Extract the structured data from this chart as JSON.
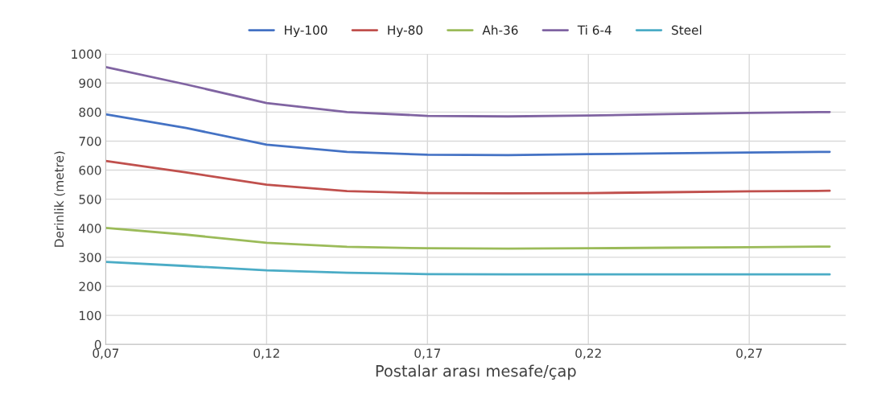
{
  "chart_data": {
    "type": "line",
    "xlabel": "Postalar arası mesafe/çap",
    "ylabel": "Derinlik (metre)",
    "x": [
      0.07,
      0.095,
      0.12,
      0.145,
      0.17,
      0.195,
      0.22,
      0.245,
      0.27,
      0.295
    ],
    "series": [
      {
        "name": "Hy-100",
        "color": "#4472c4",
        "values": [
          792,
          745,
          688,
          663,
          653,
          652,
          655,
          658,
          661,
          663
        ]
      },
      {
        "name": "Hy-80",
        "color": "#c0504d",
        "values": [
          632,
          592,
          550,
          528,
          521,
          520,
          521,
          524,
          527,
          529
        ]
      },
      {
        "name": "Ah-36",
        "color": "#9bbb59",
        "values": [
          401,
          378,
          350,
          336,
          331,
          330,
          331,
          333,
          335,
          337
        ]
      },
      {
        "name": "Ti 6-4",
        "color": "#8064a2",
        "values": [
          955,
          895,
          831,
          800,
          787,
          785,
          788,
          793,
          797,
          800
        ]
      },
      {
        "name": "Steel",
        "color": "#4bacc6",
        "values": [
          284,
          270,
          255,
          247,
          242,
          241,
          241,
          241,
          241,
          241
        ]
      }
    ],
    "xlim": [
      0.07,
      0.3
    ],
    "xticks": [
      {
        "value": 0.07,
        "label": "0,07"
      },
      {
        "value": 0.12,
        "label": "0,12"
      },
      {
        "value": 0.17,
        "label": "0,17"
      },
      {
        "value": 0.22,
        "label": "0,22"
      },
      {
        "value": 0.27,
        "label": "0,27"
      }
    ],
    "ylim": [
      0,
      1000
    ],
    "yticks": [
      0,
      100,
      200,
      300,
      400,
      500,
      600,
      700,
      800,
      900,
      1000
    ],
    "grid": true,
    "legend": "top",
    "marker": "none",
    "line_style": "solid"
  }
}
